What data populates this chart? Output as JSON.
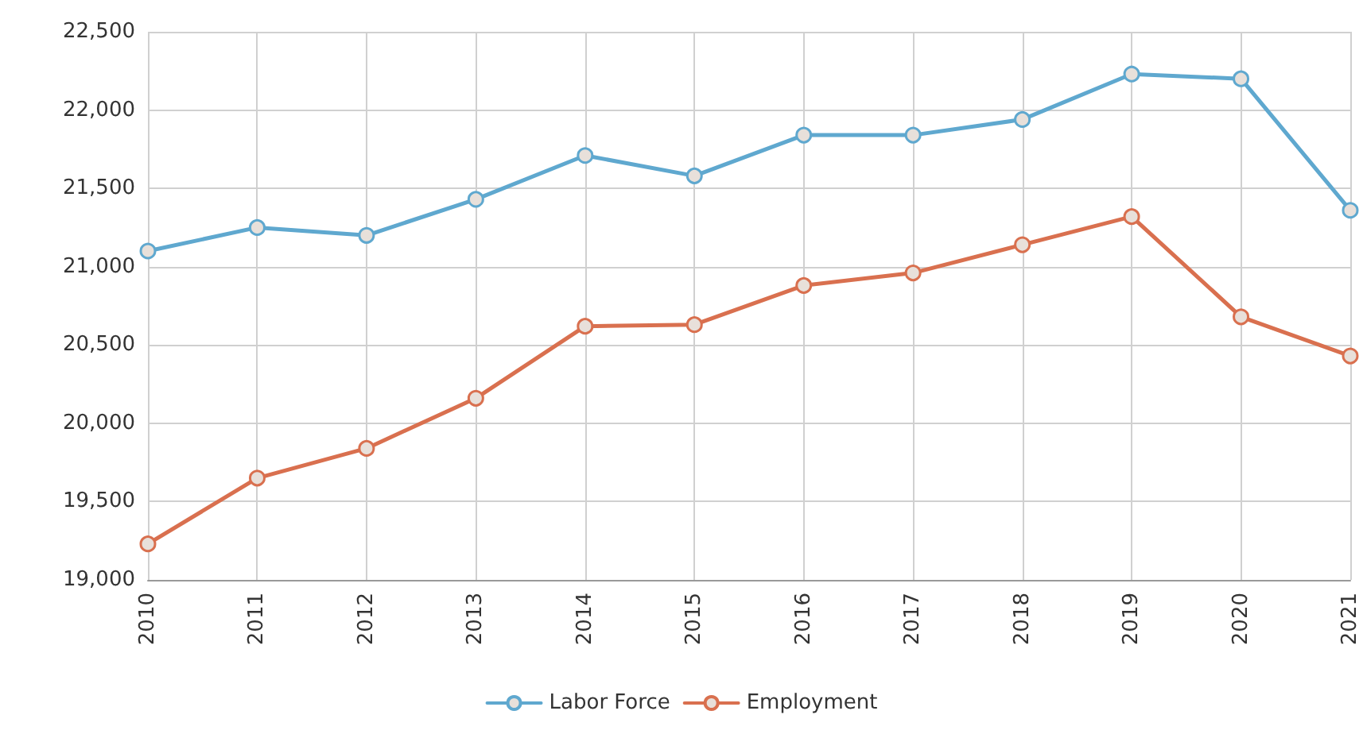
{
  "chart_data": {
    "type": "line",
    "categories": [
      "2010",
      "2011",
      "2012",
      "2013",
      "2014",
      "2015",
      "2016",
      "2017",
      "2018",
      "2019",
      "2020",
      "2021"
    ],
    "series": [
      {
        "name": "Labor Force",
        "color": "#5fa8cf",
        "values": [
          21100,
          21250,
          21200,
          21430,
          21710,
          21580,
          21840,
          21840,
          21940,
          22230,
          22200,
          21360
        ]
      },
      {
        "name": "Employment",
        "color": "#d9704f",
        "values": [
          19230,
          19650,
          19840,
          20160,
          20620,
          20630,
          20880,
          20960,
          21140,
          21320,
          20680,
          20430
        ]
      }
    ],
    "ylim": [
      19000,
      22500
    ],
    "yticks": [
      {
        "value": 19000,
        "label": "19,000"
      },
      {
        "value": 19500,
        "label": "19,500"
      },
      {
        "value": 20000,
        "label": "20,000"
      },
      {
        "value": 20500,
        "label": "20,500"
      },
      {
        "value": 21000,
        "label": "21,000"
      },
      {
        "value": 21500,
        "label": "21,500"
      },
      {
        "value": 22000,
        "label": "22,000"
      },
      {
        "value": 22500,
        "label": "22,500"
      }
    ],
    "grid": true,
    "legend": "bottom",
    "marker": "circle",
    "line_style": "solid"
  }
}
